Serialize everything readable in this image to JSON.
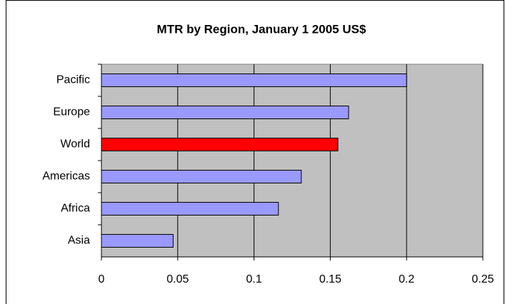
{
  "chart_data": {
    "type": "hbar",
    "title": "MTR by Region, January 1 2005 US$",
    "categories": [
      "Pacific",
      "Europe",
      "World",
      "Americas",
      "Africa",
      "Asia"
    ],
    "values": [
      0.2,
      0.162,
      0.155,
      0.131,
      0.116,
      0.047
    ],
    "colors": [
      "#9999ff",
      "#9999ff",
      "#ff0000",
      "#9999ff",
      "#9999ff",
      "#9999ff"
    ],
    "xlim": [
      0,
      0.25
    ],
    "xticks": [
      0,
      0.05,
      0.1,
      0.15,
      0.2,
      0.25
    ],
    "grid": true,
    "plot_background": "#c0c0c0"
  }
}
